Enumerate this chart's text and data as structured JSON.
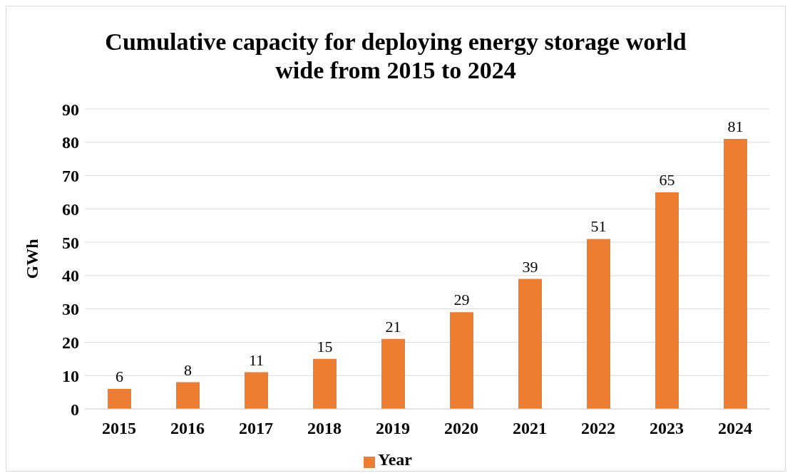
{
  "chart_data": {
    "type": "bar",
    "title": "Cumulative capacity for deploying energy storage world wide from 2015 to 2024",
    "ylabel": "GWh",
    "categories": [
      "2015",
      "2016",
      "2017",
      "2018",
      "2019",
      "2020",
      "2021",
      "2022",
      "2023",
      "2024"
    ],
    "series": [
      {
        "name": "Year",
        "color": "#ed7d31",
        "values": [
          6,
          8,
          11,
          15,
          21,
          29,
          39,
          51,
          65,
          81
        ]
      }
    ],
    "ylim": [
      0,
      90
    ],
    "yticks": [
      0,
      10,
      20,
      30,
      40,
      50,
      60,
      70,
      80,
      90
    ],
    "grid": "y",
    "legend": "bottom",
    "data_labels": true
  }
}
